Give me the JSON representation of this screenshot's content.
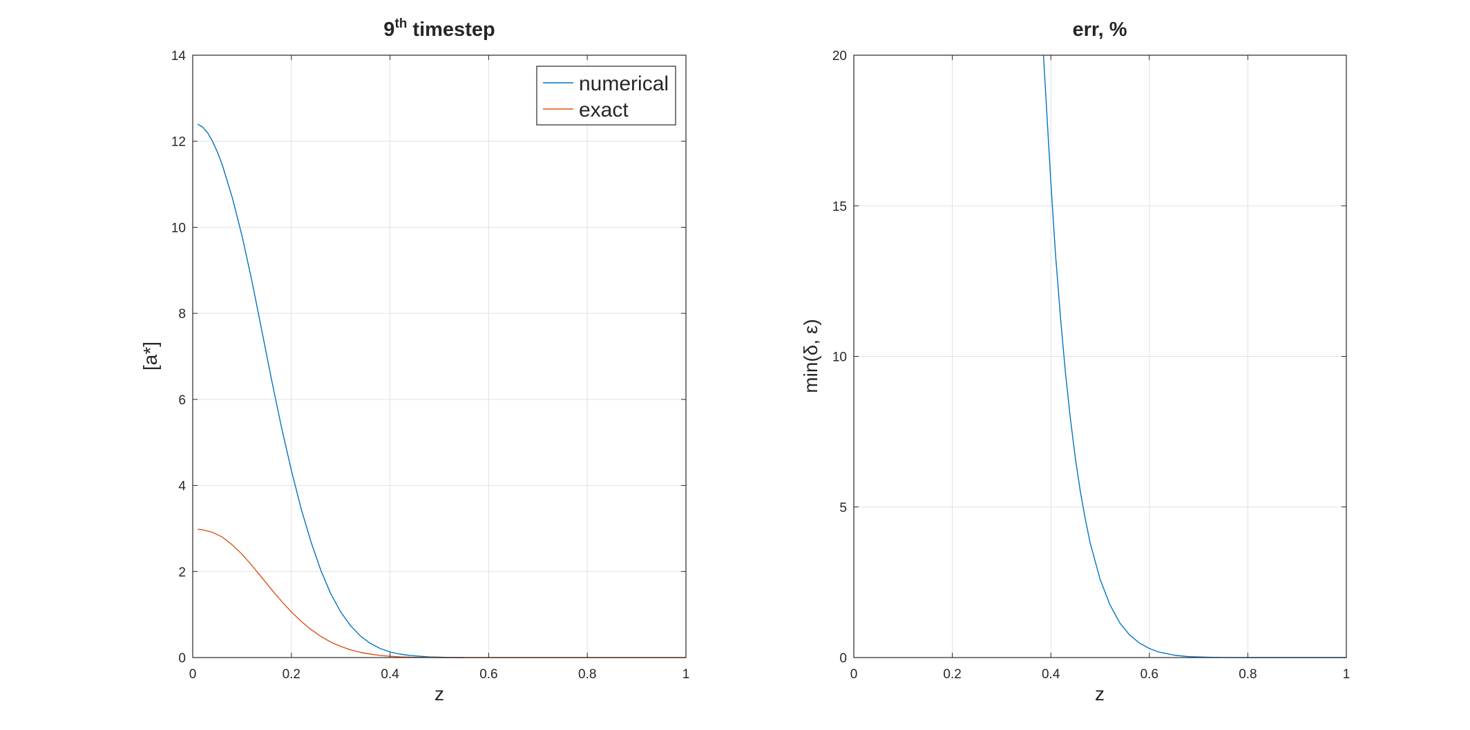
{
  "chart_data": [
    {
      "type": "line",
      "title": "9",
      "title_sup": "th",
      "title_rest": " timestep",
      "xlabel": "z",
      "ylabel": "[a*]",
      "xlim": [
        0,
        1
      ],
      "ylim": [
        0,
        14
      ],
      "xticks": [
        0,
        0.2,
        0.4,
        0.6,
        0.8,
        1
      ],
      "xtick_labels": [
        "0",
        "0.2",
        "0.4",
        "0.6",
        "0.8",
        "1"
      ],
      "yticks": [
        0,
        2,
        4,
        6,
        8,
        10,
        12,
        14
      ],
      "ytick_labels": [
        "0",
        "2",
        "4",
        "6",
        "8",
        "10",
        "12",
        "14"
      ],
      "grid": true,
      "legend_position": "top-right",
      "series": [
        {
          "name": "numerical",
          "color": "#0072bd",
          "x": [
            0.01,
            0.02,
            0.03,
            0.04,
            0.05,
            0.06,
            0.08,
            0.1,
            0.12,
            0.14,
            0.16,
            0.18,
            0.2,
            0.22,
            0.24,
            0.26,
            0.28,
            0.3,
            0.32,
            0.34,
            0.36,
            0.38,
            0.4,
            0.42,
            0.44,
            0.46,
            0.48,
            0.5,
            0.52,
            0.55
          ],
          "y": [
            12.4,
            12.33,
            12.2,
            12.0,
            11.75,
            11.45,
            10.7,
            9.8,
            8.75,
            7.6,
            6.45,
            5.35,
            4.35,
            3.45,
            2.68,
            2.02,
            1.48,
            1.06,
            0.74,
            0.5,
            0.33,
            0.21,
            0.13,
            0.08,
            0.05,
            0.03,
            0.015,
            0.008,
            0.004,
            0.0
          ]
        },
        {
          "name": "exact",
          "color": "#d95319",
          "x": [
            0.01,
            0.02,
            0.04,
            0.06,
            0.08,
            0.1,
            0.12,
            0.14,
            0.16,
            0.18,
            0.2,
            0.22,
            0.24,
            0.26,
            0.28,
            0.3,
            0.32,
            0.34,
            0.36,
            0.38,
            0.4,
            0.42,
            0.45,
            0.5,
            0.6,
            0.8,
            1.0
          ],
          "y": [
            2.98,
            2.97,
            2.91,
            2.8,
            2.62,
            2.4,
            2.14,
            1.86,
            1.58,
            1.31,
            1.06,
            0.84,
            0.65,
            0.49,
            0.36,
            0.26,
            0.18,
            0.12,
            0.08,
            0.05,
            0.03,
            0.015,
            0.006,
            0.0,
            0.0,
            0.0,
            0.0
          ]
        }
      ]
    },
    {
      "type": "line",
      "title": "err, %",
      "xlabel": "z",
      "ylabel": "min(δ, ε)",
      "xlim": [
        0,
        1
      ],
      "ylim": [
        0,
        20
      ],
      "xticks": [
        0,
        0.2,
        0.4,
        0.6,
        0.8,
        1
      ],
      "xtick_labels": [
        "0",
        "0.2",
        "0.4",
        "0.6",
        "0.8",
        "1"
      ],
      "yticks": [
        0,
        5,
        10,
        15,
        20
      ],
      "ytick_labels": [
        "0",
        "5",
        "10",
        "15",
        "20"
      ],
      "grid": true,
      "series": [
        {
          "name": "err",
          "color": "#0072bd",
          "x": [
            0.385,
            0.39,
            0.395,
            0.4,
            0.405,
            0.41,
            0.42,
            0.43,
            0.44,
            0.45,
            0.46,
            0.47,
            0.48,
            0.5,
            0.52,
            0.54,
            0.56,
            0.58,
            0.6,
            0.62,
            0.65,
            0.68,
            0.72,
            0.76,
            0.8,
            0.9,
            1.0
          ],
          "y": [
            20.0,
            18.6,
            17.2,
            15.8,
            14.5,
            13.3,
            11.2,
            9.4,
            7.9,
            6.6,
            5.5,
            4.6,
            3.8,
            2.6,
            1.75,
            1.15,
            0.75,
            0.48,
            0.3,
            0.18,
            0.08,
            0.03,
            0.01,
            0.003,
            0.0,
            0.0,
            0.0
          ]
        }
      ]
    }
  ]
}
